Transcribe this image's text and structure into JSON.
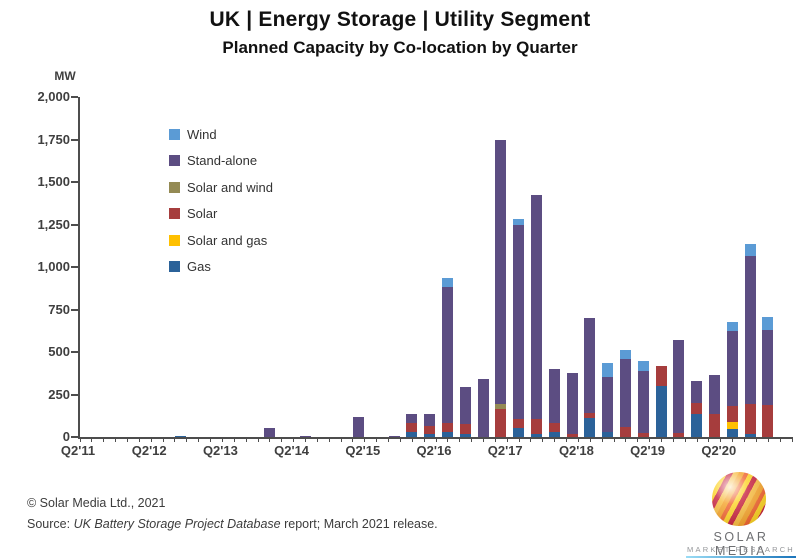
{
  "title": "UK | Energy Storage | Utility Segment",
  "subtitle": "Planned Capacity by Co-location by Quarter",
  "legend": [
    {
      "label": "Wind",
      "color": "#5B9BD5"
    },
    {
      "label": "Stand-alone",
      "color": "#5C4D82"
    },
    {
      "label": "Solar and wind",
      "color": "#948A54"
    },
    {
      "label": "Solar",
      "color": "#A63D3D"
    },
    {
      "label": "Solar and gas",
      "color": "#FFC000"
    },
    {
      "label": "Gas",
      "color": "#2B6299"
    }
  ],
  "chart_data": {
    "type": "bar",
    "stacked": true,
    "title": "UK | Energy Storage | Utility Segment — Planned Capacity by Co-location by Quarter",
    "ylabel": "MW",
    "xlabel": "",
    "ylim": [
      0,
      2000
    ],
    "grid": false,
    "legend_position": "upper-left-inside",
    "yticks": [
      {
        "value": 2000,
        "label": "2,000"
      },
      {
        "value": 1750,
        "label": "1,750"
      },
      {
        "value": 1500,
        "label": "1,500"
      },
      {
        "value": 1250,
        "label": "1,250"
      },
      {
        "value": 1000,
        "label": "1,000"
      },
      {
        "value": 750,
        "label": "750"
      },
      {
        "value": 500,
        "label": "500"
      },
      {
        "value": 250,
        "label": "250"
      },
      {
        "value": 0,
        "label": "0"
      }
    ],
    "categories": [
      "Q2'11",
      "Q3'11",
      "Q4'11",
      "Q1'12",
      "Q2'12",
      "Q3'12",
      "Q4'12",
      "Q1'13",
      "Q2'13",
      "Q3'13",
      "Q4'13",
      "Q1'14",
      "Q2'14",
      "Q3'14",
      "Q4'14",
      "Q1'15",
      "Q2'15",
      "Q3'15",
      "Q4'15",
      "Q1'16",
      "Q2'16",
      "Q3'16",
      "Q4'16",
      "Q1'17",
      "Q2'17",
      "Q3'17",
      "Q4'17",
      "Q1'18",
      "Q2'18",
      "Q3'18",
      "Q4'18",
      "Q1'19",
      "Q2'19",
      "Q3'19",
      "Q4'19",
      "Q1'20",
      "Q2'20",
      "Q3'20",
      "Q4'20",
      "Q1'21"
    ],
    "xtick_labels": [
      "Q2'11",
      "Q2'12",
      "Q2'13",
      "Q2'14",
      "Q2'15",
      "Q2'16",
      "Q2'17",
      "Q2'18",
      "Q2'19",
      "Q2'20"
    ],
    "xtick_every": 4,
    "minor_xticks": 60,
    "series": [
      {
        "name": "Gas",
        "color": "#2B6299",
        "values": [
          0,
          0,
          0,
          0,
          0,
          5,
          0,
          0,
          0,
          0,
          0,
          0,
          0,
          0,
          0,
          0,
          0,
          0,
          30,
          20,
          30,
          15,
          0,
          0,
          55,
          15,
          30,
          0,
          110,
          30,
          0,
          0,
          300,
          0,
          135,
          0,
          45,
          15,
          0,
          0
        ]
      },
      {
        "name": "Solar and gas",
        "color": "#FFC000",
        "values": [
          0,
          0,
          0,
          0,
          0,
          0,
          0,
          0,
          0,
          0,
          0,
          0,
          0,
          0,
          0,
          0,
          0,
          0,
          0,
          0,
          0,
          0,
          0,
          0,
          0,
          0,
          0,
          0,
          0,
          0,
          0,
          0,
          0,
          0,
          0,
          0,
          40,
          0,
          0,
          0
        ]
      },
      {
        "name": "Solar",
        "color": "#A63D3D",
        "values": [
          0,
          0,
          0,
          0,
          0,
          0,
          0,
          0,
          0,
          0,
          0,
          0,
          0,
          0,
          0,
          0,
          0,
          0,
          50,
          45,
          50,
          60,
          0,
          165,
          55,
          90,
          50,
          20,
          30,
          0,
          60,
          25,
          120,
          25,
          65,
          135,
          95,
          175,
          190,
          0
        ]
      },
      {
        "name": "Solar and wind",
        "color": "#948A54",
        "values": [
          0,
          0,
          0,
          0,
          0,
          0,
          0,
          0,
          0,
          0,
          0,
          0,
          0,
          0,
          0,
          0,
          0,
          0,
          0,
          0,
          0,
          0,
          0,
          30,
          0,
          0,
          0,
          0,
          0,
          0,
          0,
          0,
          0,
          0,
          0,
          0,
          0,
          0,
          0,
          0
        ]
      },
      {
        "name": "Stand-alone",
        "color": "#5C4D82",
        "values": [
          0,
          0,
          0,
          0,
          0,
          0,
          0,
          0,
          0,
          0,
          50,
          0,
          8,
          0,
          0,
          120,
          0,
          8,
          55,
          70,
          800,
          220,
          340,
          1550,
          1140,
          1315,
          320,
          360,
          560,
          325,
          400,
          365,
          0,
          545,
          130,
          230,
          440,
          870,
          440,
          0
        ]
      },
      {
        "name": "Wind",
        "color": "#5B9BD5",
        "values": [
          0,
          0,
          0,
          0,
          0,
          0,
          0,
          0,
          0,
          0,
          0,
          0,
          0,
          0,
          0,
          0,
          0,
          0,
          0,
          0,
          50,
          0,
          0,
          0,
          35,
          0,
          0,
          0,
          0,
          80,
          55,
          60,
          0,
          0,
          0,
          0,
          50,
          70,
          75,
          0
        ]
      }
    ]
  },
  "footer": {
    "copyright": "© Solar Media Ltd., 2021",
    "source_prefix": "Source: ",
    "source_italic": "UK Battery Storage Project Database",
    "source_suffix": " report; March 2021 release."
  },
  "logo": {
    "line1": "SOLAR MEDIA",
    "line2": "MARKET RESEARCH"
  }
}
